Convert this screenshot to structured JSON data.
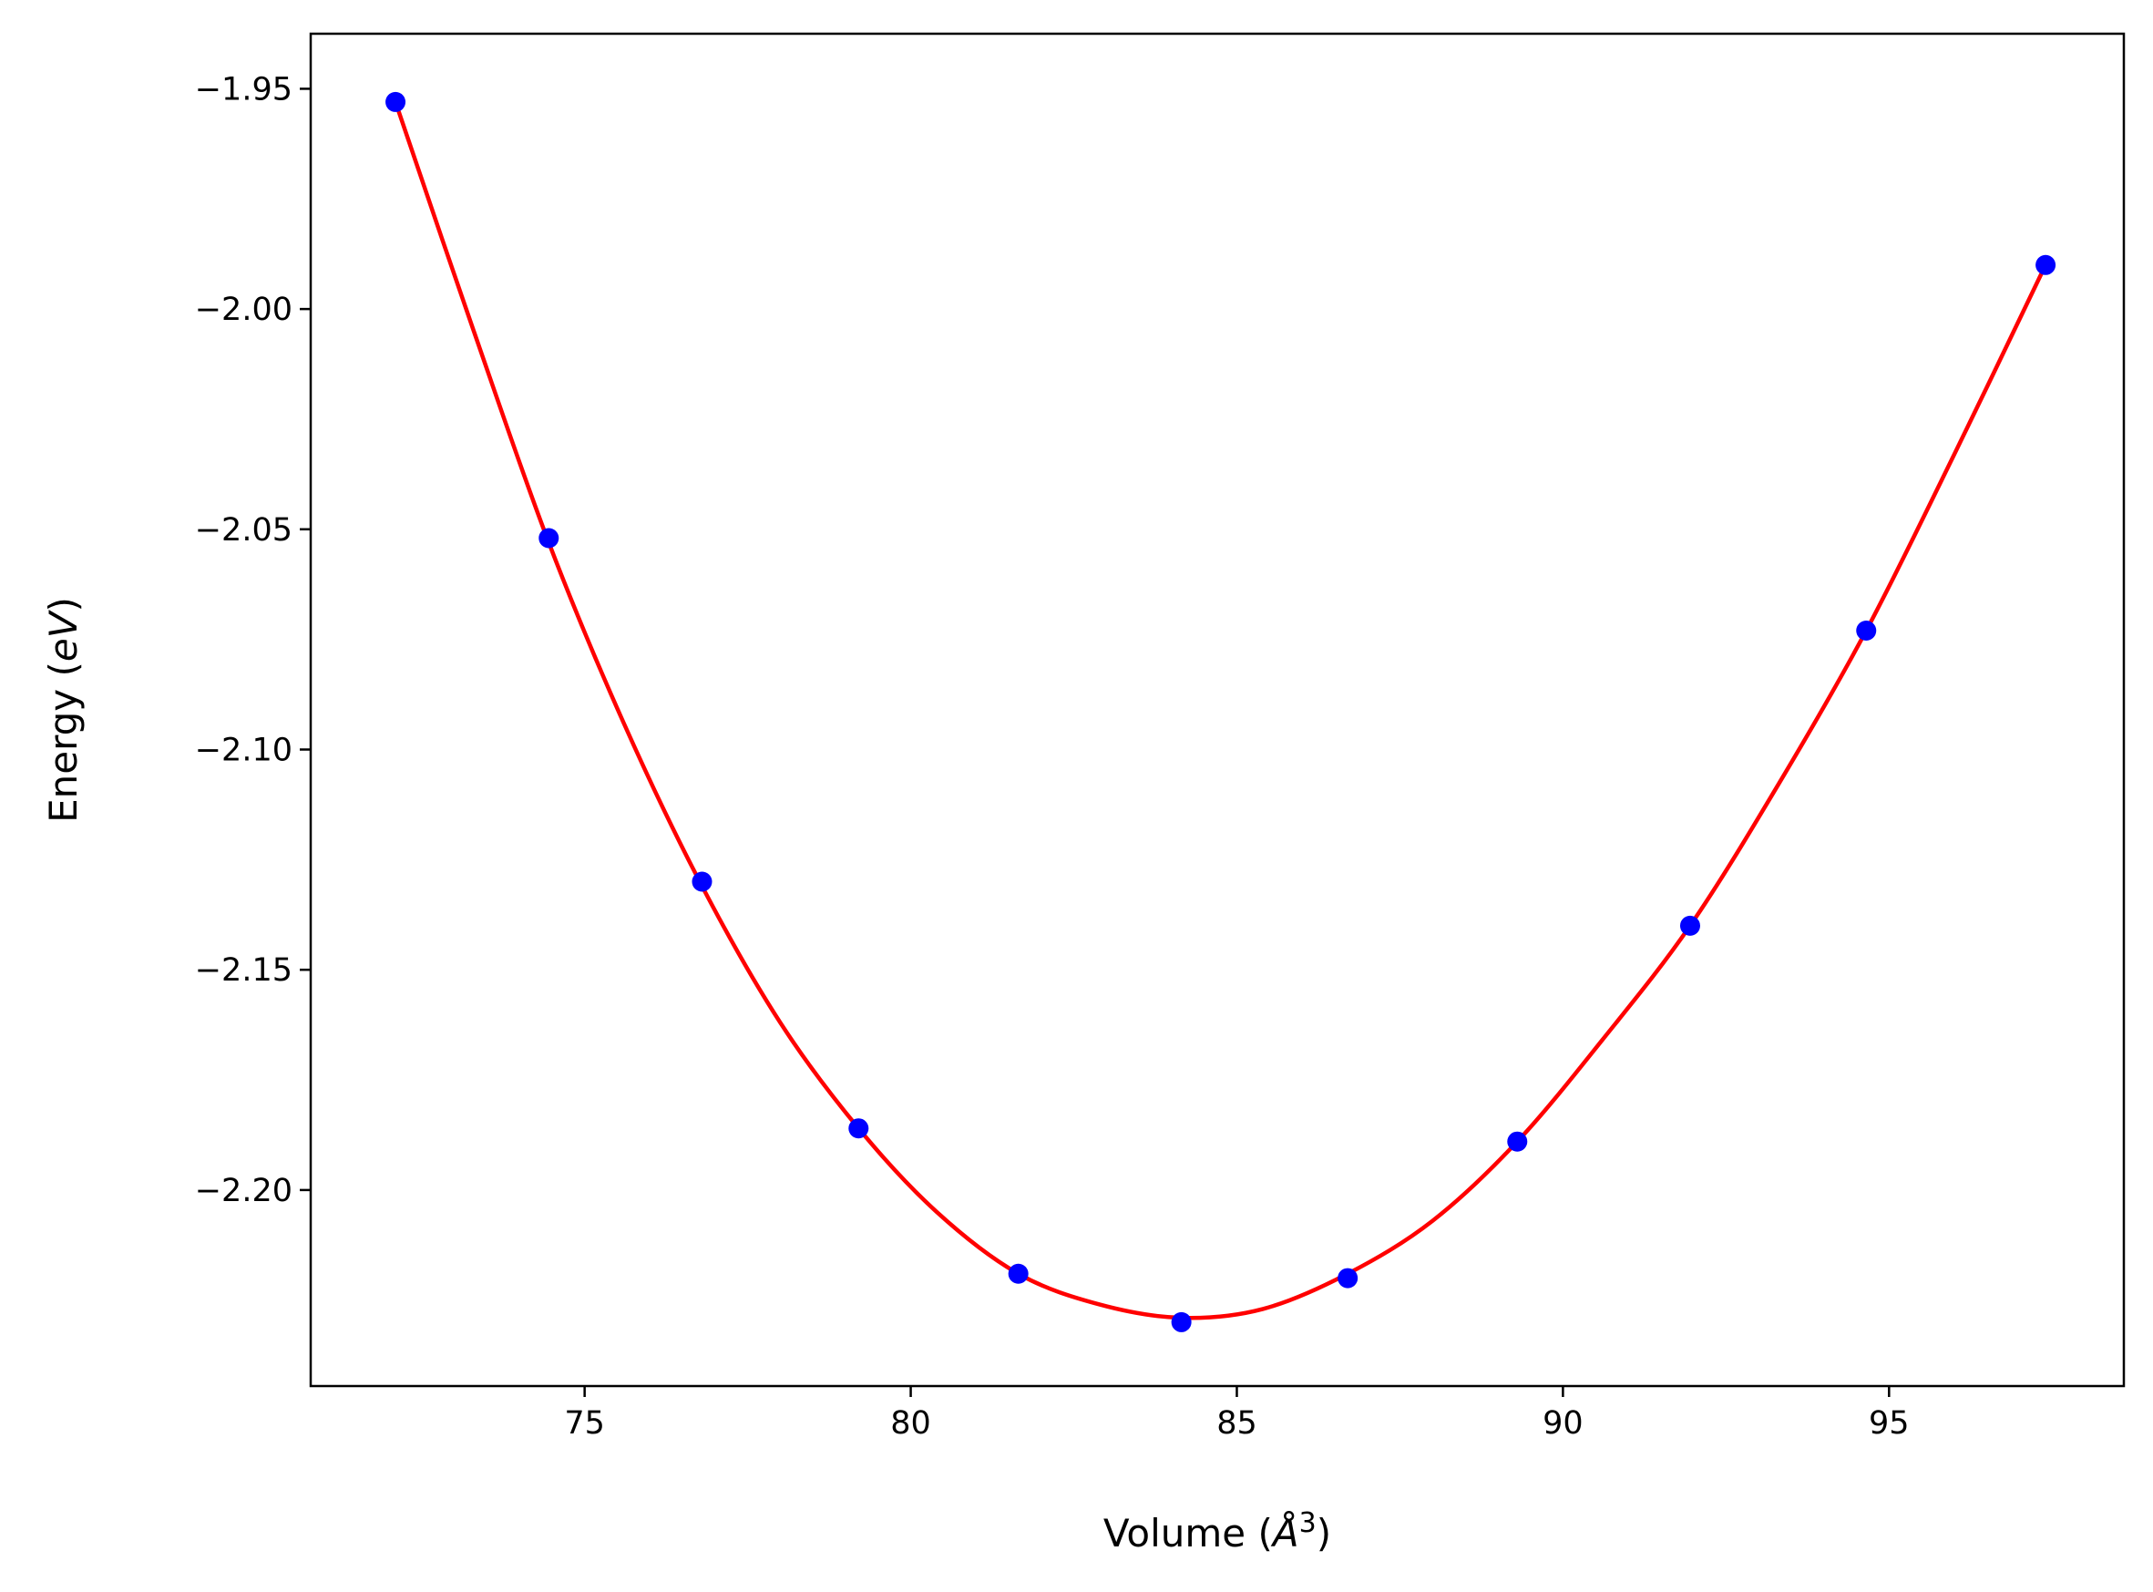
{
  "chart_data": {
    "type": "scatter",
    "xlabel_text": "Volume (",
    "xlabel_symbol": "Å",
    "xlabel_sup": "3",
    "xlabel_close": ")",
    "ylabel_text": "Energy (",
    "ylabel_symbol": "eV",
    "ylabel_close": ")",
    "xlim": [
      70.8,
      98.6
    ],
    "ylim": [
      -2.2445,
      -1.9375
    ],
    "xticks": [
      75,
      80,
      85,
      90,
      95
    ],
    "xtick_labels": [
      "75",
      "80",
      "85",
      "90",
      "95"
    ],
    "yticks": [
      -1.95,
      -2.0,
      -2.05,
      -2.1,
      -2.15,
      -2.2
    ],
    "ytick_labels": [
      "−1.95",
      "−2.00",
      "−2.05",
      "−2.10",
      "−2.15",
      "−2.20"
    ],
    "grid": false,
    "series": [
      {
        "kind": "markers",
        "color": "#0000ff",
        "x": [
          72.1,
          74.45,
          76.8,
          79.2,
          81.65,
          84.15,
          86.7,
          89.3,
          91.95,
          94.65,
          97.4
        ],
        "y": [
          -1.953,
          -2.052,
          -2.13,
          -2.186,
          -2.219,
          -2.23,
          -2.22,
          -2.189,
          -2.14,
          -2.073,
          -1.99
        ]
      },
      {
        "kind": "fit-line",
        "color": "#ff0000",
        "x": [
          72.1,
          73.3,
          74.45,
          75.6,
          76.8,
          78.0,
          79.2,
          80.4,
          81.65,
          82.9,
          84.15,
          85.4,
          86.7,
          88.0,
          89.3,
          90.6,
          91.95,
          93.3,
          94.65,
          96.0,
          97.4
        ],
        "y": [
          -1.953,
          -2.005,
          -2.053,
          -2.094,
          -2.131,
          -2.162,
          -2.186,
          -2.205,
          -2.219,
          -2.226,
          -2.229,
          -2.227,
          -2.219,
          -2.207,
          -2.189,
          -2.166,
          -2.14,
          -2.108,
          -2.073,
          -2.033,
          -1.99
        ]
      }
    ]
  }
}
